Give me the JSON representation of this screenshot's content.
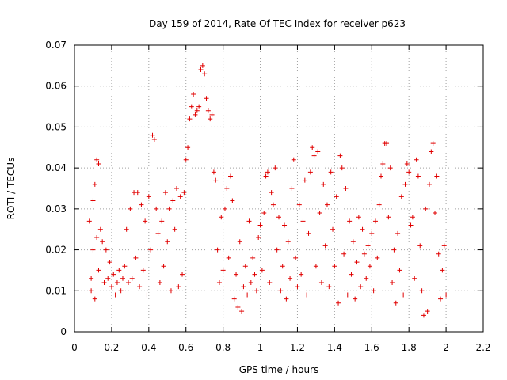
{
  "chart_data": {
    "type": "scatter",
    "title": "Day 159 of 2014, Rate Of TEC Index for receiver p623",
    "xlabel": "GPS time / hours",
    "ylabel": "ROTI / TECUs",
    "xlim": [
      0,
      2.2
    ],
    "ylim": [
      0,
      0.07
    ],
    "xticks": [
      "0",
      "0.2",
      "0.4",
      "0.6",
      "0.8",
      "1",
      "1.2",
      "1.4",
      "1.6",
      "1.8",
      "2",
      "2.2"
    ],
    "yticks": [
      "0",
      "0.01",
      "0.02",
      "0.03",
      "0.04",
      "0.05",
      "0.06",
      "0.07"
    ],
    "grid": true,
    "marker": "+",
    "color": "#e00000",
    "series": [
      {
        "name": "ROTI",
        "points": [
          [
            0.08,
            0.027
          ],
          [
            0.09,
            0.013
          ],
          [
            0.09,
            0.01
          ],
          [
            0.1,
            0.032
          ],
          [
            0.1,
            0.02
          ],
          [
            0.11,
            0.036
          ],
          [
            0.11,
            0.008
          ],
          [
            0.12,
            0.042
          ],
          [
            0.12,
            0.023
          ],
          [
            0.13,
            0.041
          ],
          [
            0.13,
            0.015
          ],
          [
            0.14,
            0.025
          ],
          [
            0.15,
            0.022
          ],
          [
            0.16,
            0.012
          ],
          [
            0.17,
            0.02
          ],
          [
            0.18,
            0.013
          ],
          [
            0.19,
            0.017
          ],
          [
            0.2,
            0.011
          ],
          [
            0.21,
            0.014
          ],
          [
            0.22,
            0.009
          ],
          [
            0.23,
            0.012
          ],
          [
            0.24,
            0.015
          ],
          [
            0.25,
            0.01
          ],
          [
            0.26,
            0.013
          ],
          [
            0.27,
            0.016
          ],
          [
            0.28,
            0.025
          ],
          [
            0.29,
            0.012
          ],
          [
            0.3,
            0.03
          ],
          [
            0.31,
            0.013
          ],
          [
            0.32,
            0.034
          ],
          [
            0.33,
            0.018
          ],
          [
            0.34,
            0.034
          ],
          [
            0.35,
            0.011
          ],
          [
            0.36,
            0.031
          ],
          [
            0.37,
            0.015
          ],
          [
            0.38,
            0.027
          ],
          [
            0.39,
            0.009
          ],
          [
            0.4,
            0.033
          ],
          [
            0.41,
            0.02
          ],
          [
            0.42,
            0.048
          ],
          [
            0.43,
            0.047
          ],
          [
            0.44,
            0.03
          ],
          [
            0.45,
            0.024
          ],
          [
            0.46,
            0.012
          ],
          [
            0.47,
            0.027
          ],
          [
            0.48,
            0.016
          ],
          [
            0.49,
            0.034
          ],
          [
            0.5,
            0.022
          ],
          [
            0.51,
            0.03
          ],
          [
            0.52,
            0.01
          ],
          [
            0.53,
            0.032
          ],
          [
            0.54,
            0.025
          ],
          [
            0.55,
            0.035
          ],
          [
            0.56,
            0.011
          ],
          [
            0.57,
            0.033
          ],
          [
            0.58,
            0.014
          ],
          [
            0.59,
            0.034
          ],
          [
            0.6,
            0.042
          ],
          [
            0.61,
            0.045
          ],
          [
            0.62,
            0.052
          ],
          [
            0.63,
            0.055
          ],
          [
            0.64,
            0.058
          ],
          [
            0.65,
            0.053
          ],
          [
            0.66,
            0.054
          ],
          [
            0.67,
            0.055
          ],
          [
            0.68,
            0.064
          ],
          [
            0.69,
            0.065
          ],
          [
            0.7,
            0.063
          ],
          [
            0.71,
            0.057
          ],
          [
            0.72,
            0.054
          ],
          [
            0.73,
            0.052
          ],
          [
            0.74,
            0.053
          ],
          [
            0.75,
            0.039
          ],
          [
            0.76,
            0.037
          ],
          [
            0.77,
            0.02
          ],
          [
            0.78,
            0.012
          ],
          [
            0.79,
            0.028
          ],
          [
            0.8,
            0.015
          ],
          [
            0.81,
            0.03
          ],
          [
            0.82,
            0.035
          ],
          [
            0.83,
            0.018
          ],
          [
            0.84,
            0.038
          ],
          [
            0.85,
            0.032
          ],
          [
            0.86,
            0.008
          ],
          [
            0.87,
            0.014
          ],
          [
            0.88,
            0.006
          ],
          [
            0.89,
            0.022
          ],
          [
            0.9,
            0.005
          ],
          [
            0.91,
            0.011
          ],
          [
            0.92,
            0.016
          ],
          [
            0.93,
            0.009
          ],
          [
            0.94,
            0.027
          ],
          [
            0.95,
            0.012
          ],
          [
            0.96,
            0.018
          ],
          [
            0.97,
            0.014
          ],
          [
            0.98,
            0.01
          ],
          [
            0.99,
            0.023
          ],
          [
            1.0,
            0.026
          ],
          [
            1.01,
            0.015
          ],
          [
            1.02,
            0.029
          ],
          [
            1.03,
            0.038
          ],
          [
            1.04,
            0.039
          ],
          [
            1.05,
            0.012
          ],
          [
            1.06,
            0.034
          ],
          [
            1.07,
            0.031
          ],
          [
            1.08,
            0.04
          ],
          [
            1.09,
            0.02
          ],
          [
            1.1,
            0.028
          ],
          [
            1.11,
            0.01
          ],
          [
            1.12,
            0.016
          ],
          [
            1.13,
            0.026
          ],
          [
            1.14,
            0.008
          ],
          [
            1.15,
            0.022
          ],
          [
            1.16,
            0.013
          ],
          [
            1.17,
            0.035
          ],
          [
            1.18,
            0.042
          ],
          [
            1.19,
            0.018
          ],
          [
            1.2,
            0.011
          ],
          [
            1.21,
            0.031
          ],
          [
            1.22,
            0.014
          ],
          [
            1.23,
            0.027
          ],
          [
            1.24,
            0.037
          ],
          [
            1.25,
            0.009
          ],
          [
            1.26,
            0.024
          ],
          [
            1.27,
            0.039
          ],
          [
            1.28,
            0.045
          ],
          [
            1.29,
            0.043
          ],
          [
            1.3,
            0.016
          ],
          [
            1.31,
            0.044
          ],
          [
            1.32,
            0.029
          ],
          [
            1.33,
            0.012
          ],
          [
            1.34,
            0.036
          ],
          [
            1.35,
            0.021
          ],
          [
            1.36,
            0.031
          ],
          [
            1.37,
            0.011
          ],
          [
            1.38,
            0.039
          ],
          [
            1.39,
            0.025
          ],
          [
            1.4,
            0.016
          ],
          [
            1.41,
            0.033
          ],
          [
            1.42,
            0.007
          ],
          [
            1.43,
            0.043
          ],
          [
            1.44,
            0.04
          ],
          [
            1.45,
            0.019
          ],
          [
            1.46,
            0.035
          ],
          [
            1.47,
            0.009
          ],
          [
            1.48,
            0.027
          ],
          [
            1.49,
            0.014
          ],
          [
            1.5,
            0.022
          ],
          [
            1.51,
            0.008
          ],
          [
            1.52,
            0.017
          ],
          [
            1.53,
            0.028
          ],
          [
            1.54,
            0.011
          ],
          [
            1.55,
            0.025
          ],
          [
            1.56,
            0.019
          ],
          [
            1.57,
            0.013
          ],
          [
            1.58,
            0.021
          ],
          [
            1.59,
            0.016
          ],
          [
            1.6,
            0.024
          ],
          [
            1.61,
            0.01
          ],
          [
            1.62,
            0.027
          ],
          [
            1.63,
            0.018
          ],
          [
            1.64,
            0.031
          ],
          [
            1.65,
            0.038
          ],
          [
            1.66,
            0.041
          ],
          [
            1.67,
            0.046
          ],
          [
            1.68,
            0.046
          ],
          [
            1.69,
            0.028
          ],
          [
            1.7,
            0.04
          ],
          [
            1.71,
            0.012
          ],
          [
            1.72,
            0.02
          ],
          [
            1.73,
            0.007
          ],
          [
            1.74,
            0.024
          ],
          [
            1.75,
            0.015
          ],
          [
            1.76,
            0.033
          ],
          [
            1.77,
            0.009
          ],
          [
            1.78,
            0.036
          ],
          [
            1.79,
            0.041
          ],
          [
            1.8,
            0.039
          ],
          [
            1.81,
            0.026
          ],
          [
            1.82,
            0.028
          ],
          [
            1.83,
            0.013
          ],
          [
            1.84,
            0.042
          ],
          [
            1.85,
            0.038
          ],
          [
            1.86,
            0.021
          ],
          [
            1.87,
            0.01
          ],
          [
            1.88,
            0.004
          ],
          [
            1.89,
            0.03
          ],
          [
            1.9,
            0.005
          ],
          [
            1.91,
            0.036
          ],
          [
            1.92,
            0.044
          ],
          [
            1.93,
            0.046
          ],
          [
            1.94,
            0.029
          ],
          [
            1.95,
            0.038
          ],
          [
            1.96,
            0.019
          ],
          [
            1.97,
            0.008
          ],
          [
            1.98,
            0.015
          ],
          [
            1.99,
            0.021
          ],
          [
            2.0,
            0.009
          ]
        ]
      }
    ]
  }
}
